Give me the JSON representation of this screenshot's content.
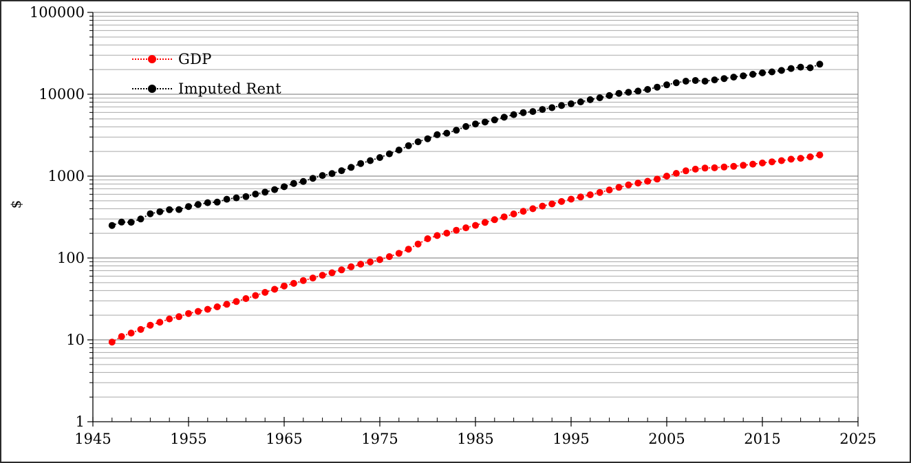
{
  "chart_data": {
    "type": "line",
    "title": "",
    "xlabel": "",
    "ylabel": "$",
    "grid": {
      "major": true,
      "minor": true
    },
    "x_axis": {
      "min": 1945,
      "max": 2025,
      "major_tick_interval": 10,
      "minor_tick_interval": 2,
      "tick_labels": [
        "1945",
        "1955",
        "1965",
        "1975",
        "1985",
        "1995",
        "2005",
        "2015",
        "2025"
      ]
    },
    "y_axis": {
      "scale": "log",
      "min": 1,
      "max": 100000,
      "tick_labels": [
        "1",
        "10",
        "100",
        "1000",
        "10000",
        "100000"
      ]
    },
    "legend": {
      "position": "top-left-inside",
      "entries": [
        "GDP",
        "Imputed Rent"
      ]
    },
    "years": [
      1947,
      1948,
      1949,
      1950,
      1951,
      1952,
      1953,
      1954,
      1955,
      1956,
      1957,
      1958,
      1959,
      1960,
      1961,
      1962,
      1963,
      1964,
      1965,
      1966,
      1967,
      1968,
      1969,
      1970,
      1971,
      1972,
      1973,
      1974,
      1975,
      1976,
      1977,
      1978,
      1979,
      1980,
      1981,
      1982,
      1983,
      1984,
      1985,
      1986,
      1987,
      1988,
      1989,
      1990,
      1991,
      1992,
      1993,
      1994,
      1995,
      1996,
      1997,
      1998,
      1999,
      2000,
      2001,
      2002,
      2003,
      2004,
      2005,
      2006,
      2007,
      2008,
      2009,
      2010,
      2011,
      2012,
      2013,
      2014,
      2015,
      2016,
      2017,
      2018,
      2019,
      2020,
      2021
    ],
    "series": [
      {
        "name": "GDP",
        "color": "#fe0000",
        "marker": "circle",
        "line_style": "dotted",
        "values": [
          9.4,
          11.0,
          12.1,
          13.4,
          15.1,
          16.4,
          18.0,
          19.2,
          21.0,
          22.3,
          23.6,
          25.3,
          27.2,
          29.4,
          31.9,
          34.8,
          38.0,
          41.5,
          45.5,
          49.0,
          53.0,
          57.0,
          61.5,
          66.0,
          71.5,
          78.0,
          84.0,
          89.5,
          95.5,
          104,
          114,
          128,
          148,
          172,
          188,
          201,
          218,
          234,
          250,
          272,
          294,
          318,
          345,
          372,
          400,
          430,
          458,
          490,
          523,
          556,
          592,
          632,
          678,
          730,
          780,
          822,
          865,
          920,
          1000,
          1080,
          1160,
          1215,
          1255,
          1265,
          1290,
          1315,
          1355,
          1400,
          1448,
          1495,
          1545,
          1610,
          1650,
          1720,
          1815
        ]
      },
      {
        "name": "Imputed Rent",
        "color": "#000000",
        "marker": "circle",
        "line_style": "dotted",
        "values": [
          249.6,
          274.8,
          272.8,
          299.8,
          347.3,
          367.7,
          389.2,
          390.5,
          425.5,
          449.4,
          474.0,
          481.2,
          521.7,
          542.4,
          562.2,
          603.9,
          637.5,
          684.5,
          742.3,
          813.4,
          860.0,
          940.7,
          1017.6,
          1073.3,
          1164.9,
          1279.1,
          1425.4,
          1545.2,
          1684.9,
          1873.4,
          2081.8,
          2351.6,
          2627.3,
          2857.3,
          3207.0,
          3343.8,
          3634.0,
          4037.6,
          4339.0,
          4579.6,
          4855.2,
          5236.4,
          5641.6,
          5963.1,
          6158.1,
          6520.3,
          6858.6,
          7287.2,
          7639.7,
          8073.1,
          8577.6,
          9062.8,
          9631.2,
          10252.3,
          10581.8,
          10936.4,
          11458.2,
          12213.7,
          13036.6,
          13814.6,
          14451.9,
          14712.8,
          14448.9,
          14992.1,
          15542.6,
          16197.0,
          16784.9,
          17527.3,
          18238.3,
          18745.1,
          19543.0,
          20611.9,
          21433.2,
          21060.5,
          23315.1
        ]
      }
    ],
    "colors": {
      "background": "#ffffff",
      "border": "#2b2b2b",
      "axis": "#000000",
      "gridline_minor": "#a9a9a9",
      "gridline_major": "#737373"
    }
  }
}
